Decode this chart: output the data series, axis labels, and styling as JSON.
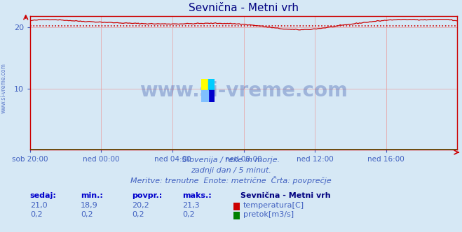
{
  "title": "Sevnična - Metni vrh",
  "title_color": "#000080",
  "bg_color": "#d6e8f5",
  "plot_bg_color": "#d6e8f5",
  "temp_color": "#cc0000",
  "flow_color": "#008000",
  "avg_line_color": "#cc0000",
  "avg_temp": 20.2,
  "avg_flow": 0.2,
  "temp_min": 18.9,
  "temp_max": 21.3,
  "temp_current": 21.0,
  "flow_min": 0.2,
  "flow_max": 0.2,
  "flow_current": 0.2,
  "ylim": [
    0,
    21.8
  ],
  "yticks": [
    10,
    20
  ],
  "x_labels": [
    "sob 20:00",
    "ned 00:00",
    "ned 04:00",
    "ned 08:00",
    "ned 12:00",
    "ned 16:00"
  ],
  "x_positions": [
    0,
    48,
    96,
    144,
    192,
    240
  ],
  "n_points": 289,
  "subtitle1": "Slovenija / reke in morje.",
  "subtitle2": "zadnji dan / 5 minut.",
  "subtitle3": "Meritve: trenutne  Enote: metrične  Črta: povprečje",
  "subtitle_color": "#4060c0",
  "label_sedaj": "sedaj:",
  "label_min": "min.:",
  "label_povpr": "povpr.:",
  "label_maks": "maks.:",
  "label_station": "Sevnična - Metni vrh",
  "label_temp": "temperatura[C]",
  "label_flow": "pretok[m3/s]",
  "watermark": "www.si-vreme.com",
  "watermark_color": "#2040a0",
  "grid_color": "#e8a0a0",
  "axis_color": "#cc0000",
  "tick_color": "#4060c0",
  "header_color": "#0000cc",
  "val_color": "#4060c0"
}
